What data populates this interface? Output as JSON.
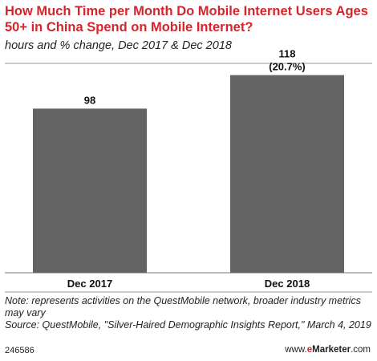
{
  "header": {
    "title": "How Much Time per Month Do Mobile Internet Users Ages 50+ in China Spend on Mobile Internet?",
    "subtitle": "hours and % change, Dec 2017 & Dec 2018"
  },
  "chart_data": {
    "type": "bar",
    "title": "How Much Time per Month Do Mobile Internet Users Ages 50+ in China Spend on Mobile Internet?",
    "subtitle": "hours and % change, Dec 2017 & Dec 2018",
    "categories": [
      "Dec 2017",
      "Dec 2018"
    ],
    "values": [
      98,
      118
    ],
    "value_labels": [
      "98",
      "118"
    ],
    "change_labels": [
      "",
      "(20.7%)"
    ],
    "ylim": [
      0,
      125
    ],
    "grid": false,
    "bar_color": "#646464"
  },
  "notes": {
    "note": "Note: represents activities on the QuestMobile network, broader industry metrics may vary",
    "source": "Source: QuestMobile, \"Silver-Haired Demographic Insights Report,\" March 4, 2019"
  },
  "footer": {
    "id": "246586",
    "brand_prefix": "www.",
    "brand_e": "e",
    "brand_rest": "Marketer",
    "brand_suffix": ".com"
  },
  "colors": {
    "accent": "#d5252c",
    "bar": "#646464",
    "rule": "#999999"
  }
}
